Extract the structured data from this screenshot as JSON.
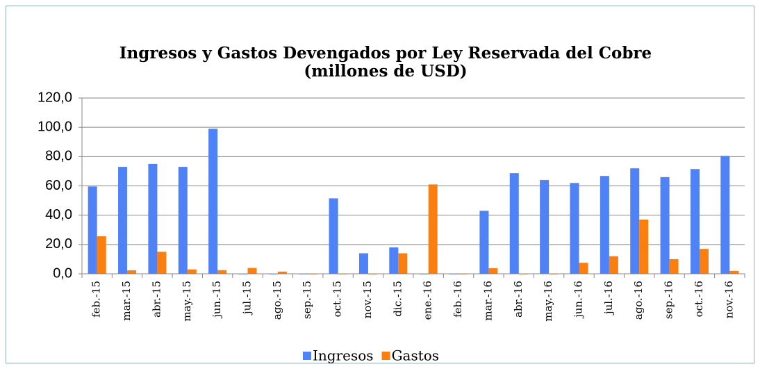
{
  "chart_data": {
    "type": "bar",
    "title": "Ingresos y Gastos Devengados por Ley Reservada del Cobre",
    "subtitle": "(millones de USD)",
    "categories": [
      "feb.-15",
      "mar.-15",
      "abr.-15",
      "may.-15",
      "jun.-15",
      "jul.-15",
      "ago.-15",
      "sep.-15",
      "oct.-15",
      "nov.-15",
      "dic.-15",
      "ene.-16",
      "feb.-16",
      "mar.-16",
      "abr.-16",
      "may.-16",
      "jun.-16",
      "jul.-16",
      "ago.-16",
      "sep.-16",
      "oct.-16",
      "nov.-16"
    ],
    "series": [
      {
        "name": "Ingresos",
        "color": "#4f81f7",
        "values": [
          59.6,
          73,
          75,
          73,
          99,
          0,
          0,
          0,
          51.5,
          14,
          18,
          0,
          0,
          43,
          68.7,
          64,
          62,
          66.8,
          72,
          66,
          71.5,
          80.5
        ]
      },
      {
        "name": "Gastos",
        "color": "#fb7f0f",
        "values": [
          25.6,
          2.4,
          15,
          3,
          2.5,
          4,
          1.5,
          0,
          0,
          0,
          14,
          61,
          0,
          3.8,
          0,
          0,
          7.5,
          12,
          37,
          10,
          17,
          2
        ]
      }
    ],
    "ylim": [
      0,
      120
    ],
    "yticks": [
      {
        "value": 0,
        "label": "0,0"
      },
      {
        "value": 20,
        "label": "20,0"
      },
      {
        "value": 40,
        "label": "40,0"
      },
      {
        "value": 60,
        "label": "60,0"
      },
      {
        "value": 80,
        "label": "80,0"
      },
      {
        "value": 100,
        "label": "100,0"
      },
      {
        "value": 120,
        "label": "120,0"
      }
    ],
    "grid": true,
    "legend": "bottom"
  }
}
